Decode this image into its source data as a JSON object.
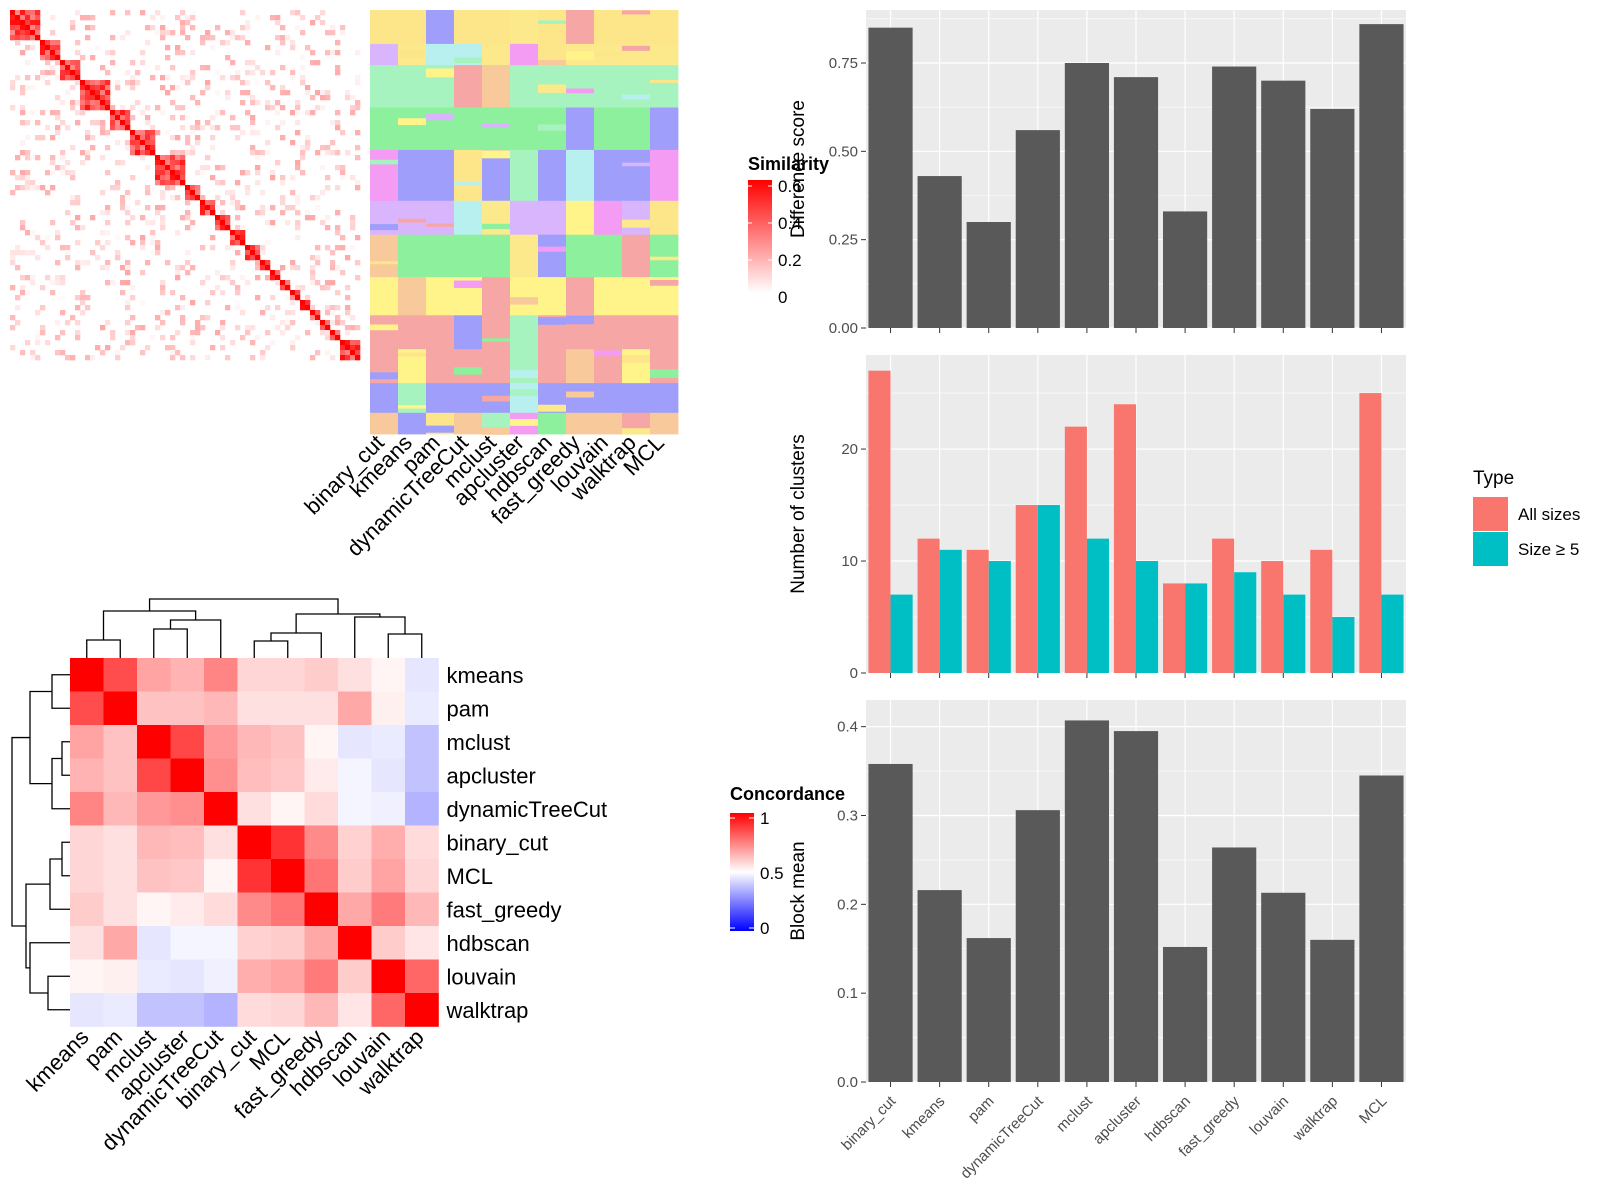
{
  "panels": {
    "similarity_legend_title": "Similarity",
    "similarity_legend_ticks": [
      "0.6",
      "0.4",
      "0.2",
      "0"
    ],
    "concordance_legend_title": "Concordance",
    "concordance_legend_ticks": [
      "1",
      "0.5",
      "0"
    ],
    "type_legend_title": "Type",
    "type_legend_items": [
      "All sizes",
      "Size ≥ 5"
    ],
    "method_labels_top": [
      "binary_cut",
      "kmeans",
      "pam",
      "dynamicTreeCut",
      "mclust",
      "apcluster",
      "hdbscan",
      "fast_greedy",
      "louvain",
      "walktrap",
      "MCL"
    ]
  },
  "colors": {
    "bar": "#595959",
    "all_sizes": "#f8766d",
    "size_ge_5": "#00bfc4",
    "panel_bg": "#ebebeb",
    "high": "#ff0000",
    "low": "#0000ff"
  },
  "chart_data": [
    {
      "type": "heatmap",
      "name": "concordance",
      "rows": [
        "kmeans",
        "pam",
        "mclust",
        "apcluster",
        "dynamicTreeCut",
        "binary_cut",
        "MCL",
        "fast_greedy",
        "hdbscan",
        "louvain",
        "walktrap"
      ],
      "columns": [
        "kmeans",
        "pam",
        "mclust",
        "apcluster",
        "dynamicTreeCut",
        "binary_cut",
        "MCL",
        "fast_greedy",
        "hdbscan",
        "louvain",
        "walktrap"
      ],
      "values": [
        [
          1.0,
          0.85,
          0.68,
          0.65,
          0.74,
          0.58,
          0.58,
          0.6,
          0.56,
          0.52,
          0.45
        ],
        [
          0.85,
          1.0,
          0.62,
          0.62,
          0.64,
          0.56,
          0.56,
          0.56,
          0.67,
          0.53,
          0.46
        ],
        [
          0.68,
          0.62,
          1.0,
          0.86,
          0.7,
          0.64,
          0.62,
          0.52,
          0.45,
          0.46,
          0.38
        ],
        [
          0.65,
          0.62,
          0.86,
          1.0,
          0.72,
          0.63,
          0.61,
          0.54,
          0.48,
          0.45,
          0.38
        ],
        [
          0.74,
          0.64,
          0.7,
          0.72,
          1.0,
          0.56,
          0.52,
          0.57,
          0.48,
          0.47,
          0.35
        ],
        [
          0.58,
          0.56,
          0.64,
          0.63,
          0.56,
          1.0,
          0.9,
          0.73,
          0.59,
          0.66,
          0.57
        ],
        [
          0.58,
          0.56,
          0.62,
          0.61,
          0.52,
          0.9,
          1.0,
          0.77,
          0.6,
          0.68,
          0.58
        ],
        [
          0.6,
          0.56,
          0.52,
          0.54,
          0.57,
          0.73,
          0.77,
          1.0,
          0.67,
          0.76,
          0.64
        ],
        [
          0.56,
          0.67,
          0.45,
          0.48,
          0.48,
          0.59,
          0.6,
          0.67,
          1.0,
          0.6,
          0.55
        ],
        [
          0.52,
          0.53,
          0.46,
          0.45,
          0.47,
          0.66,
          0.68,
          0.76,
          0.6,
          1.0,
          0.8
        ],
        [
          0.45,
          0.46,
          0.38,
          0.38,
          0.35,
          0.57,
          0.58,
          0.64,
          0.55,
          0.8,
          1.0
        ]
      ],
      "color_range": [
        0,
        1
      ],
      "legend_title": "Concordance"
    },
    {
      "type": "bar",
      "categories": [
        "binary_cut",
        "kmeans",
        "pam",
        "dynamicTreeCut",
        "mclust",
        "apcluster",
        "hdbscan",
        "fast_greedy",
        "louvain",
        "walktrap",
        "MCL"
      ],
      "values": [
        0.85,
        0.43,
        0.3,
        0.56,
        0.75,
        0.71,
        0.33,
        0.74,
        0.7,
        0.62,
        0.86
      ],
      "ylabel": "Difference score",
      "ylim": [
        0,
        0.9
      ],
      "yticks": [
        "0.00",
        "0.25",
        "0.50",
        "0.75"
      ]
    },
    {
      "type": "bar",
      "categories": [
        "binary_cut",
        "kmeans",
        "pam",
        "dynamicTreeCut",
        "mclust",
        "apcluster",
        "hdbscan",
        "fast_greedy",
        "louvain",
        "walktrap",
        "MCL"
      ],
      "series": [
        {
          "name": "All sizes",
          "values": [
            27,
            12,
            11,
            15,
            22,
            24,
            8,
            12,
            10,
            11,
            25
          ]
        },
        {
          "name": "Size ≥ 5",
          "values": [
            7,
            11,
            10,
            15,
            12,
            10,
            8,
            9,
            7,
            5,
            7
          ]
        }
      ],
      "ylabel": "Number of clusters",
      "ylim": [
        0,
        28.4
      ],
      "yticks": [
        "0",
        "10",
        "20"
      ],
      "legend": "right"
    },
    {
      "type": "bar",
      "categories": [
        "binary_cut",
        "kmeans",
        "pam",
        "dynamicTreeCut",
        "mclust",
        "apcluster",
        "hdbscan",
        "fast_greedy",
        "louvain",
        "walktrap",
        "MCL"
      ],
      "values": [
        0.358,
        0.216,
        0.162,
        0.306,
        0.407,
        0.395,
        0.152,
        0.264,
        0.213,
        0.16,
        0.345
      ],
      "ylabel": "Block mean",
      "ylim": [
        0,
        0.43
      ],
      "yticks": [
        "0.0",
        "0.1",
        "0.2",
        "0.3",
        "0.4"
      ]
    }
  ]
}
